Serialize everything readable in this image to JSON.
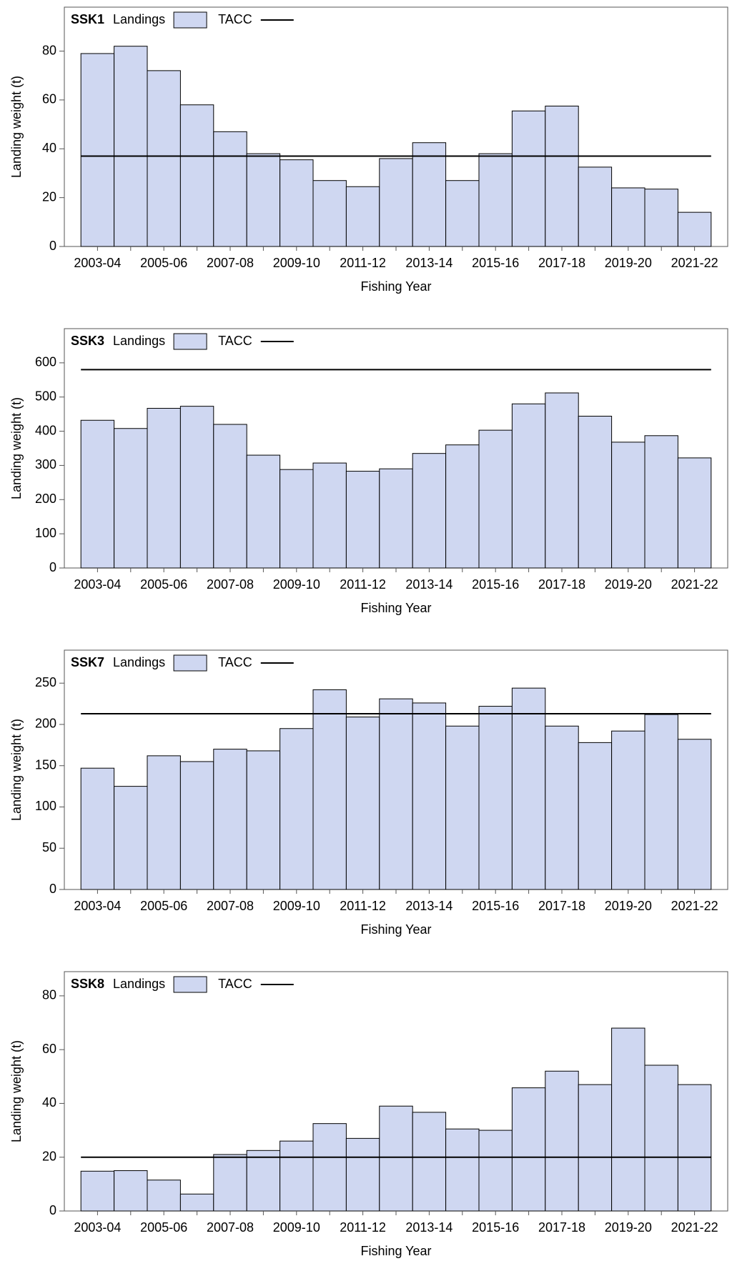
{
  "chart_data": [
    {
      "type": "bar",
      "title": "SSK1",
      "x_label": "Fishing Year",
      "y_label": "Landing weight (t)",
      "categories": [
        "2003-04",
        null,
        "2005-06",
        null,
        "2007-08",
        null,
        "2009-10",
        null,
        "2011-12",
        null,
        "2013-14",
        null,
        "2015-16",
        null,
        "2017-18",
        null,
        "2019-20",
        null,
        "2021-22"
      ],
      "series": [
        {
          "name": "Landings",
          "type": "bar",
          "color": "#cfd7f1",
          "values": [
            79,
            82,
            72,
            58,
            47,
            38,
            35.5,
            27,
            24.5,
            36,
            42.5,
            27,
            38,
            55.5,
            57.5,
            32.5,
            24,
            23.5,
            14
          ]
        },
        {
          "name": "TACC",
          "type": "line",
          "color": "#000000",
          "value": 37
        }
      ],
      "ylim": [
        0,
        98
      ],
      "yticks": [
        0,
        20,
        40,
        60,
        80
      ]
    },
    {
      "type": "bar",
      "title": "SSK3",
      "x_label": "Fishing Year",
      "y_label": "Landing weight (t)",
      "categories": [
        "2003-04",
        null,
        "2005-06",
        null,
        "2007-08",
        null,
        "2009-10",
        null,
        "2011-12",
        null,
        "2013-14",
        null,
        "2015-16",
        null,
        "2017-18",
        null,
        "2019-20",
        null,
        "2021-22"
      ],
      "series": [
        {
          "name": "Landings",
          "type": "bar",
          "color": "#cfd7f1",
          "values": [
            432,
            408,
            467,
            473,
            420,
            330,
            288,
            307,
            283,
            290,
            335,
            360,
            403,
            480,
            512,
            444,
            368,
            387,
            322
          ]
        },
        {
          "name": "TACC",
          "type": "line",
          "color": "#000000",
          "value": 580
        }
      ],
      "ylim": [
        0,
        700
      ],
      "yticks": [
        0,
        100,
        200,
        300,
        400,
        500,
        600
      ]
    },
    {
      "type": "bar",
      "title": "SSK7",
      "x_label": "Fishing Year",
      "y_label": "Landing weight (t)",
      "categories": [
        "2003-04",
        null,
        "2005-06",
        null,
        "2007-08",
        null,
        "2009-10",
        null,
        "2011-12",
        null,
        "2013-14",
        null,
        "2015-16",
        null,
        "2017-18",
        null,
        "2019-20",
        null,
        "2021-22"
      ],
      "series": [
        {
          "name": "Landings",
          "type": "bar",
          "color": "#cfd7f1",
          "values": [
            147,
            125,
            162,
            155,
            170,
            168,
            195,
            242,
            209,
            231,
            226,
            198,
            222,
            244,
            198,
            178,
            192,
            212,
            182
          ]
        },
        {
          "name": "TACC",
          "type": "line",
          "color": "#000000",
          "value": 213
        }
      ],
      "ylim": [
        0,
        290
      ],
      "yticks": [
        0,
        50,
        100,
        150,
        200,
        250
      ]
    },
    {
      "type": "bar",
      "title": "SSK8",
      "x_label": "Fishing Year",
      "y_label": "Landing weight (t)",
      "categories": [
        "2003-04",
        null,
        "2005-06",
        null,
        "2007-08",
        null,
        "2009-10",
        null,
        "2011-12",
        null,
        "2013-14",
        null,
        "2015-16",
        null,
        "2017-18",
        null,
        "2019-20",
        null,
        "2021-22"
      ],
      "series": [
        {
          "name": "Landings",
          "type": "bar",
          "color": "#cfd7f1",
          "values": [
            14.8,
            15,
            11.5,
            6.3,
            21,
            22.5,
            26,
            32.5,
            27,
            39,
            36.7,
            30.5,
            30,
            45.8,
            52,
            47,
            68,
            54.2,
            47
          ]
        },
        {
          "name": "TACC",
          "type": "line",
          "color": "#000000",
          "value": 20
        }
      ],
      "ylim": [
        0,
        89
      ],
      "yticks": [
        0,
        20,
        40,
        60,
        80
      ]
    }
  ]
}
